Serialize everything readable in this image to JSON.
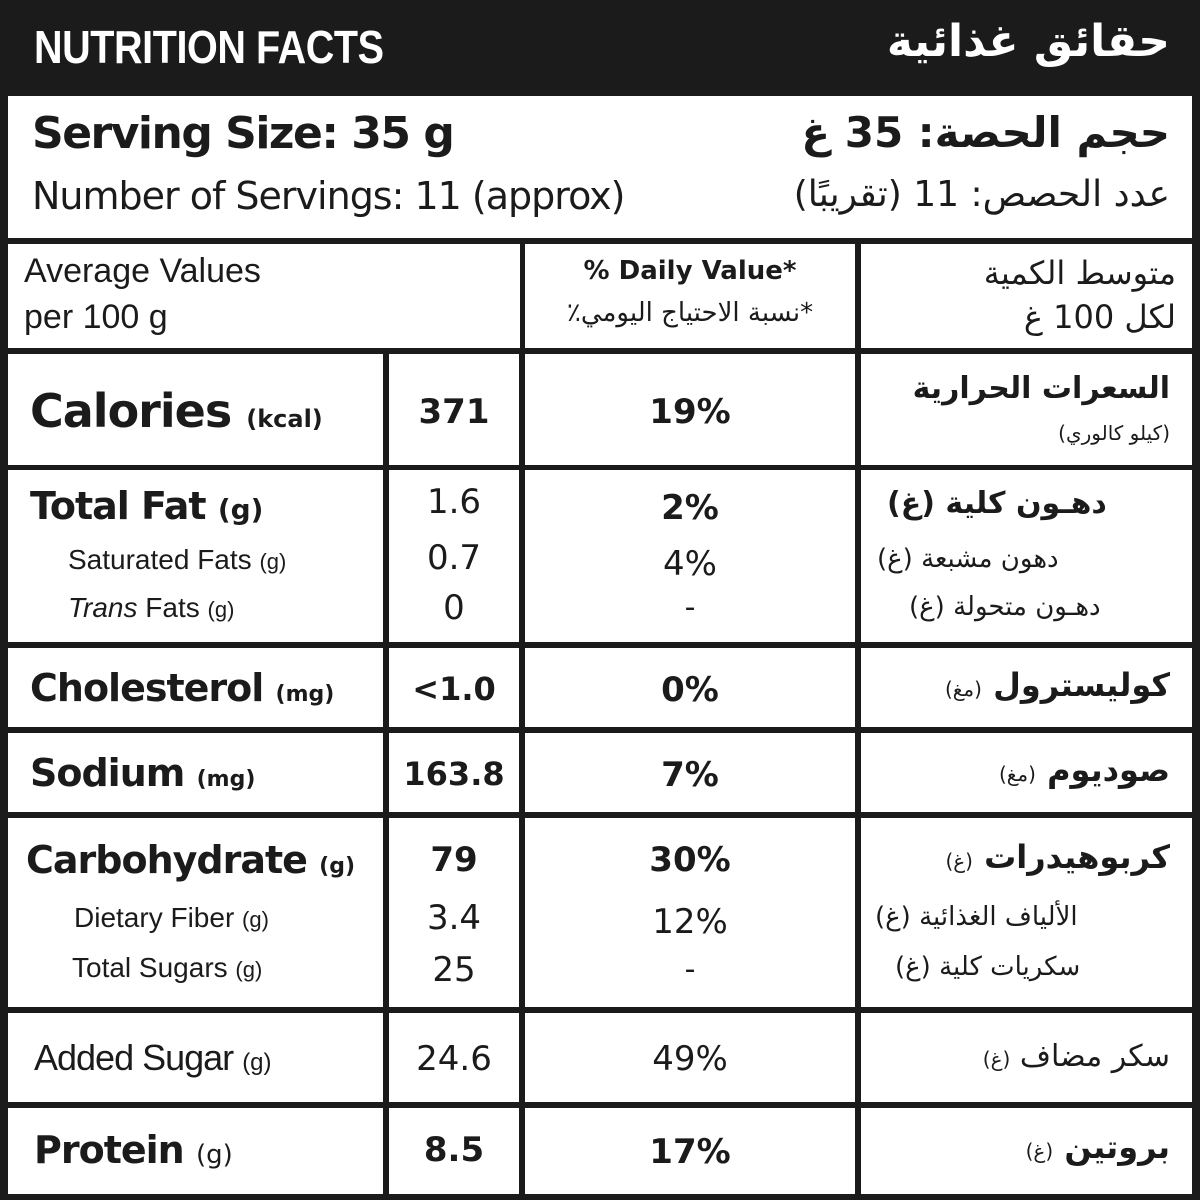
{
  "header": {
    "title_en": "NUTRITION FACTS",
    "title_ar": "حقائق غذائية"
  },
  "serving": {
    "size_en": "Serving Size: 35 g",
    "servings_en_label": "Number of Servings:",
    "servings_en_value": " 11 (approx)",
    "size_ar": "حجم الحصة: 35 غ",
    "servings_ar": "عدد الحصص: 11 (تقريبًا)"
  },
  "table_header": {
    "avg_en_line1": "Average Values",
    "avg_en_line2": "per 100 g",
    "daily_value_en": "% Daily Value*",
    "daily_value_ar": "*نسبة الاحتياج اليومي٪",
    "avg_ar_line1": "متوسط الكمية",
    "avg_ar_line2": "لكل 100 غ"
  },
  "rows": {
    "calories": {
      "name": "Calories",
      "unit": "(kcal)",
      "value": "371",
      "dv": "19%",
      "ar_name": "السعرات الحرارية",
      "ar_unit": "(كيلو كالوري)"
    },
    "total_fat": {
      "name": "Total Fat",
      "unit": "(g)",
      "value": "1.6",
      "dv": "2%",
      "ar_name": "دهـون كلية",
      "ar_unit": "(غ)"
    },
    "saturated_fats": {
      "name": "Saturated Fats",
      "unit": "(g)",
      "value": "0.7",
      "dv": "4%",
      "ar_name": "دهون مشبعة",
      "ar_unit": "(غ)"
    },
    "trans_fats": {
      "name_italic": "Trans",
      "name": " Fats",
      "unit": "(g)",
      "value": "0",
      "dv": "-",
      "ar_name": "دهـون متحولة",
      "ar_unit": "(غ)"
    },
    "cholesterol": {
      "name": "Cholesterol",
      "unit": "(mg)",
      "value": "<1.0",
      "dv": "0%",
      "ar_name": "كوليسترول",
      "ar_unit": "(مغ)"
    },
    "sodium": {
      "name": "Sodium",
      "unit": "(mg)",
      "value": "163.8",
      "dv": "7%",
      "ar_name": "صوديوم",
      "ar_unit": "(مغ)"
    },
    "carbohydrate": {
      "name": "Carbohydrate",
      "unit": "(g)",
      "value": "79",
      "dv": "30%",
      "ar_name": "كربوهيدرات",
      "ar_unit": "(غ)"
    },
    "dietary_fiber": {
      "name": "Dietary Fiber",
      "unit": "(g)",
      "value": "3.4",
      "dv": "12%",
      "ar_name": "الألياف الغذائية",
      "ar_unit": "(غ)"
    },
    "total_sugars": {
      "name": "Total Sugars",
      "unit": "(g)",
      "value": "25",
      "dv": "-",
      "ar_name": "سكريات كلية",
      "ar_unit": "(غ)"
    },
    "added_sugar": {
      "name": "Added Sugar",
      "unit": "(g)",
      "value": "24.6",
      "dv": "49%",
      "ar_name": "سكر مضاف",
      "ar_unit": "(غ)"
    },
    "protein": {
      "name": "Protein",
      "unit": "(g)",
      "value": "8.5",
      "dv": "17%",
      "ar_name": "بروتين",
      "ar_unit": "(غ)"
    }
  }
}
